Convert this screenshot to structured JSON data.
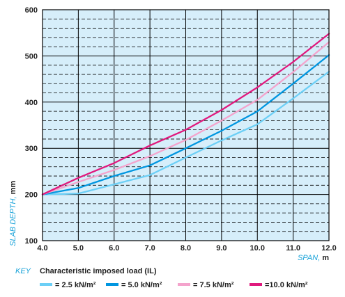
{
  "chart_data": {
    "type": "line",
    "xlabel": "SPAN, m",
    "xlabel_main": "SPAN, ",
    "xlabel_unit": "m",
    "ylabel": "SLAB DEPTH, mm",
    "ylabel_main": "SLAB DEPTH, ",
    "ylabel_unit": "mm",
    "xlim": [
      4.0,
      12.0
    ],
    "ylim": [
      100,
      600
    ],
    "x_ticks": [
      "4.0",
      "5.0",
      "6.0",
      "7.0",
      "8.0",
      "9.0",
      "10.0",
      "11.0",
      "12.0"
    ],
    "y_ticks": [
      "100",
      "200",
      "300",
      "400",
      "500",
      "600"
    ],
    "grid": true,
    "background_color": "#d6eefa",
    "legend": {
      "key_label": "KEY",
      "title": "Characteristic imposed load (IL)",
      "position": "bottom"
    },
    "x": [
      4.0,
      5.0,
      6.0,
      7.0,
      8.0,
      9.0,
      10.0,
      11.0,
      12.0
    ],
    "series": [
      {
        "name": "= 2.5 kN/m²",
        "color": "#6ccff6",
        "values": [
          200,
          202,
          222,
          242,
          280,
          317,
          352,
          408,
          466
        ]
      },
      {
        "name": "= 5.0 kN/m²",
        "color": "#0096e0",
        "values": [
          200,
          214,
          240,
          263,
          300,
          338,
          380,
          440,
          502
        ]
      },
      {
        "name": "= 7.5 kN/m²",
        "color": "#f4a3cc",
        "values": [
          200,
          227,
          253,
          283,
          318,
          360,
          405,
          465,
          530
        ]
      },
      {
        "name": "=10.0 kN/m²",
        "color": "#e0197d",
        "values": [
          200,
          236,
          268,
          306,
          340,
          383,
          432,
          487,
          548
        ]
      }
    ]
  }
}
